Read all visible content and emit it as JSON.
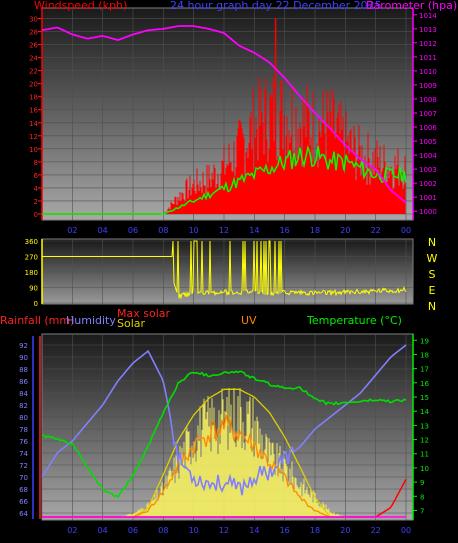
{
  "title": "24 hour graph day   22 December 2025",
  "colors": {
    "wind": "#ff0000",
    "gust_fill": "#ff0000",
    "avg_wind": "#00ff00",
    "baro": "#ff00ff",
    "dir": "#ffff00",
    "humidity": "#8080ff",
    "temp": "#00dd00",
    "solar": "#ffff00",
    "maxsolar": "#e0d000",
    "uv": "#ff8800",
    "rain": "#ff0000",
    "grid": "#505050"
  },
  "chart_data": [
    {
      "type": "line",
      "name": "wind-baro",
      "left_label": "Windspeed (kph)",
      "right_label": "Barometer (hpa)",
      "x_ticks": [
        "02",
        "04",
        "06",
        "08",
        "10",
        "12",
        "14",
        "16",
        "18",
        "20",
        "22",
        "00"
      ],
      "y_left_ticks": [
        "0",
        "2",
        "4",
        "6",
        "8",
        "10",
        "12",
        "14",
        "16",
        "18",
        "20",
        "22",
        "24",
        "26",
        "28",
        "30"
      ],
      "y_left_lim": [
        0,
        31
      ],
      "y_right_ticks": [
        "1000",
        "1001",
        "1002",
        "1003",
        "1004",
        "1005",
        "1006",
        "1007",
        "1008",
        "1009",
        "1010",
        "1011",
        "1012",
        "1013",
        "1014"
      ],
      "y_right_lim": [
        999.8,
        1014.2
      ],
      "x_hours": [
        0,
        1,
        2,
        3,
        4,
        5,
        6,
        7,
        8,
        9,
        10,
        11,
        12,
        13,
        14,
        15,
        16,
        17,
        18,
        19,
        20,
        21,
        22,
        23,
        24
      ],
      "gust": [
        0,
        0,
        0,
        0,
        0,
        0,
        0,
        0,
        0,
        3,
        5,
        6,
        8,
        11,
        15,
        17,
        17,
        16,
        15,
        15,
        12,
        10,
        9,
        8,
        8
      ],
      "gust_peak": {
        "hour": 15.4,
        "value": 30
      },
      "avg_wind": [
        0,
        0,
        0,
        0,
        0,
        0,
        0,
        0,
        0,
        1,
        2,
        3,
        4,
        5,
        6,
        7,
        8,
        9,
        9,
        8,
        8,
        7,
        6,
        6,
        6
      ],
      "barometer": [
        1012.9,
        1013.1,
        1012.6,
        1012.3,
        1012.5,
        1012.2,
        1012.6,
        1012.9,
        1013.0,
        1013.2,
        1013.2,
        1013.0,
        1012.7,
        1011.8,
        1011.3,
        1010.6,
        1009.5,
        1008.2,
        1007.0,
        1005.9,
        1004.7,
        1003.7,
        1003.0,
        1001.5,
        1000.6
      ]
    },
    {
      "type": "line",
      "name": "wind-direction",
      "right_labels": [
        "N",
        "W",
        "S",
        "E",
        "N"
      ],
      "y_left_ticks": [
        "0",
        "90",
        "180",
        "270",
        "360"
      ],
      "y_lim": [
        0,
        360
      ],
      "x_hours": [
        0,
        1,
        2,
        3,
        4,
        5,
        6,
        7,
        8,
        9,
        10,
        11,
        12,
        13,
        14,
        15,
        16,
        17,
        18,
        19,
        20,
        21,
        22,
        23,
        24
      ],
      "direction": [
        270,
        270,
        270,
        270,
        270,
        270,
        270,
        270,
        270,
        40,
        55,
        60,
        62,
        60,
        65,
        58,
        60,
        62,
        58,
        60,
        62,
        65,
        70,
        72,
        78
      ]
    },
    {
      "type": "line",
      "name": "solar-temp",
      "labels": {
        "rainfall": "Rainfall (mm)",
        "humidity": "Humidity",
        "max_solar": "Max solar",
        "solar": "Solar",
        "uv": "UV",
        "temperature": "Temperature (°C)"
      },
      "y_left_ticks": [
        "64",
        "66",
        "68",
        "70",
        "72",
        "74",
        "76",
        "78",
        "80",
        "82",
        "84",
        "86",
        "88",
        "90",
        "92"
      ],
      "y_left_lim": [
        63,
        93.5
      ],
      "y_right_ticks": [
        "7",
        "8",
        "9",
        "10",
        "11",
        "12",
        "13",
        "14",
        "15",
        "16",
        "17",
        "18",
        "19"
      ],
      "y_right_lim": [
        6.4,
        19.3
      ],
      "x_hours": [
        0,
        1,
        2,
        3,
        4,
        5,
        6,
        7,
        8,
        9,
        10,
        11,
        12,
        13,
        14,
        15,
        16,
        17,
        18,
        19,
        20,
        21,
        22,
        23,
        24
      ],
      "humidity": [
        70,
        74,
        76,
        79,
        82,
        86,
        89,
        91,
        86,
        73,
        70,
        69,
        69,
        68,
        70,
        71,
        73,
        75,
        78,
        80,
        82,
        84,
        87,
        90,
        92
      ],
      "temperature": [
        12.3,
        12.0,
        11.7,
        10.0,
        8.5,
        7.9,
        9.5,
        11.5,
        13.9,
        16.0,
        16.8,
        16.5,
        16.7,
        16.8,
        16.3,
        15.9,
        15.6,
        15.7,
        14.8,
        14.5,
        14.6,
        14.7,
        14.8,
        14.7,
        14.8
      ],
      "solar": [
        0,
        0,
        0,
        0,
        0,
        0,
        0.03,
        0.1,
        0.25,
        0.5,
        0.75,
        0.85,
        0.9,
        0.95,
        0.85,
        0.55,
        0.45,
        0.3,
        0.18,
        0.05,
        0,
        0,
        0,
        0,
        0
      ],
      "max_solar": [
        0,
        0,
        0,
        0,
        0,
        0,
        0,
        0.07,
        0.33,
        0.6,
        0.79,
        0.92,
        0.99,
        0.99,
        0.93,
        0.81,
        0.62,
        0.39,
        0.15,
        0,
        0,
        0,
        0,
        0,
        0
      ],
      "uv": [
        0,
        0,
        0,
        0,
        0,
        0,
        0,
        0.05,
        0.2,
        0.4,
        0.55,
        0.65,
        0.7,
        0.65,
        0.55,
        0.42,
        0.3,
        0.15,
        0.05,
        0,
        0,
        0,
        0,
        0,
        0
      ],
      "rain": [
        0,
        0,
        0,
        0,
        0,
        0,
        0,
        0,
        0,
        0,
        0,
        0,
        0,
        0,
        0,
        0,
        0,
        0,
        0,
        0,
        0,
        0,
        0,
        0.3,
        1.2
      ]
    }
  ]
}
